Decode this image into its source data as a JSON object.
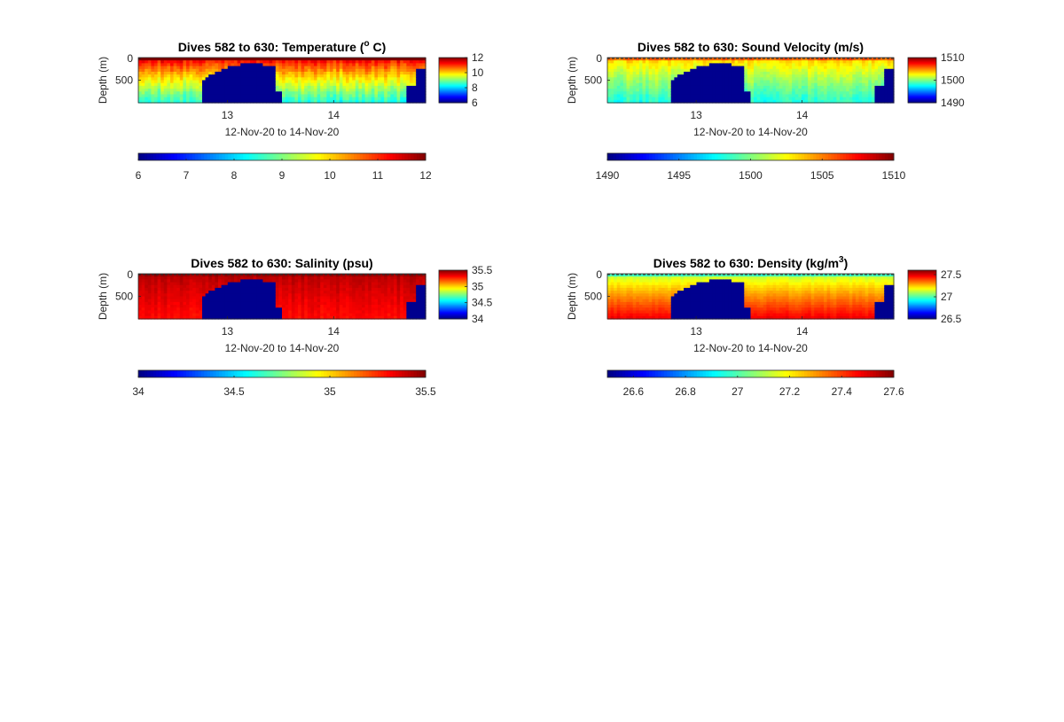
{
  "figure": {
    "background": "#ffffff"
  },
  "chart_data": [
    {
      "type": "heatmap",
      "title": "Dives 582 to 630: Temperature (° C)",
      "title_parts": [
        "Dives 582 to 630: Temperature (",
        "o",
        " C)"
      ],
      "ylabel": "Depth (m)",
      "xlabel": "12-Nov-20 to 14-Nov-20",
      "x_ticks": [
        "13",
        "14"
      ],
      "y_ticks": [
        "0",
        "500"
      ],
      "colorbar_ticks": [
        "12",
        "10",
        "8",
        "6"
      ],
      "h_colorbar_ticks": [
        "6",
        "7",
        "8",
        "9",
        "10",
        "11",
        "12"
      ],
      "value_range": [
        6,
        12
      ],
      "depth_range": [
        0,
        1000
      ],
      "colormap": "jet",
      "profile": {
        "top": 11.6,
        "bottom": 8.4
      },
      "noise": 0.5,
      "dashed_surface": false
    },
    {
      "type": "heatmap",
      "title": "Dives 582 to 630: Sound Velocity (m/s)",
      "title_parts": [
        "Dives 582 to 630: Sound Velocity (m/s)",
        "",
        ""
      ],
      "ylabel": "Depth (m)",
      "xlabel": "12-Nov-20 to 14-Nov-20",
      "x_ticks": [
        "13",
        "14"
      ],
      "y_ticks": [
        "0",
        "500"
      ],
      "colorbar_ticks": [
        "1510",
        "1500",
        "1490"
      ],
      "h_colorbar_ticks": [
        "1490",
        "1495",
        "1500",
        "1505",
        "1510"
      ],
      "value_range": [
        1490,
        1510
      ],
      "depth_range": [
        0,
        1000
      ],
      "colormap": "jet",
      "profile": {
        "top": 1504,
        "bottom": 1498
      },
      "noise": 1.3,
      "dashed_surface": true
    },
    {
      "type": "heatmap",
      "title": "Dives 582 to 630: Salinity (psu)",
      "title_parts": [
        "Dives 582 to 630: Salinity (psu)",
        "",
        ""
      ],
      "ylabel": "Depth (m)",
      "xlabel": "12-Nov-20 to 14-Nov-20",
      "x_ticks": [
        "13",
        "14"
      ],
      "y_ticks": [
        "0",
        "500"
      ],
      "colorbar_ticks": [
        "35.5",
        "35",
        "34.5",
        "34"
      ],
      "h_colorbar_ticks": [
        "34",
        "34.5",
        "35",
        "35.5"
      ],
      "value_range": [
        34,
        35.5
      ],
      "depth_range": [
        0,
        1000
      ],
      "colormap": "jet",
      "profile": {
        "top": 35.43,
        "bottom": 35.3
      },
      "noise": 0.05,
      "dashed_surface": true
    },
    {
      "type": "heatmap",
      "title": "Dives 582 to 630: Density (kg/m³)",
      "title_parts": [
        "Dives 582 to 630: Density (kg/m",
        "3",
        ")"
      ],
      "ylabel": "Depth (m)",
      "xlabel": "12-Nov-20 to 14-Nov-20",
      "x_ticks": [
        "13",
        "14"
      ],
      "y_ticks": [
        "0",
        "500"
      ],
      "colorbar_ticks": [
        "27.5",
        "27",
        "26.5"
      ],
      "h_colorbar_ticks": [
        "26.6",
        "26.8",
        "27",
        "27.2",
        "27.4",
        "27.6"
      ],
      "value_range": [
        26.5,
        27.6
      ],
      "depth_range": [
        0,
        1000
      ],
      "colormap": "jet",
      "profile": {
        "top": 27.08,
        "bottom": 27.48
      },
      "noise": 0.03,
      "dashed_surface": true
    }
  ]
}
